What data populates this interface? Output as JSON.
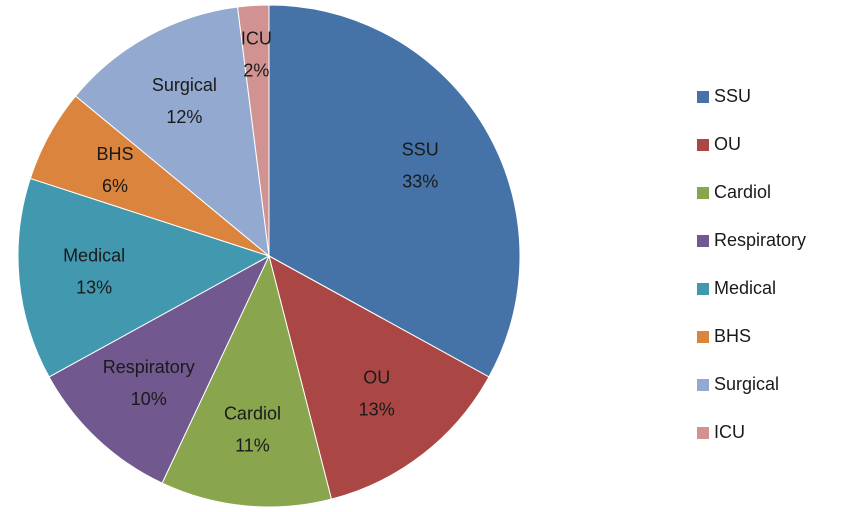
{
  "chart_data": {
    "type": "pie",
    "categories": [
      "SSU",
      "OU",
      "Cardiol",
      "Respiratory",
      "Medical",
      "BHS",
      "Surgical",
      "ICU"
    ],
    "values": [
      33,
      13,
      11,
      10,
      13,
      6,
      12,
      2
    ],
    "value_labels": [
      "33%",
      "13%",
      "11%",
      "10%",
      "13%",
      "6%",
      "12%",
      "2%"
    ],
    "colors": [
      "#4572a7",
      "#aa4643",
      "#89a54e",
      "#71588f",
      "#4198af",
      "#db843d",
      "#93a9cf",
      "#d19392"
    ],
    "legend": "right"
  }
}
